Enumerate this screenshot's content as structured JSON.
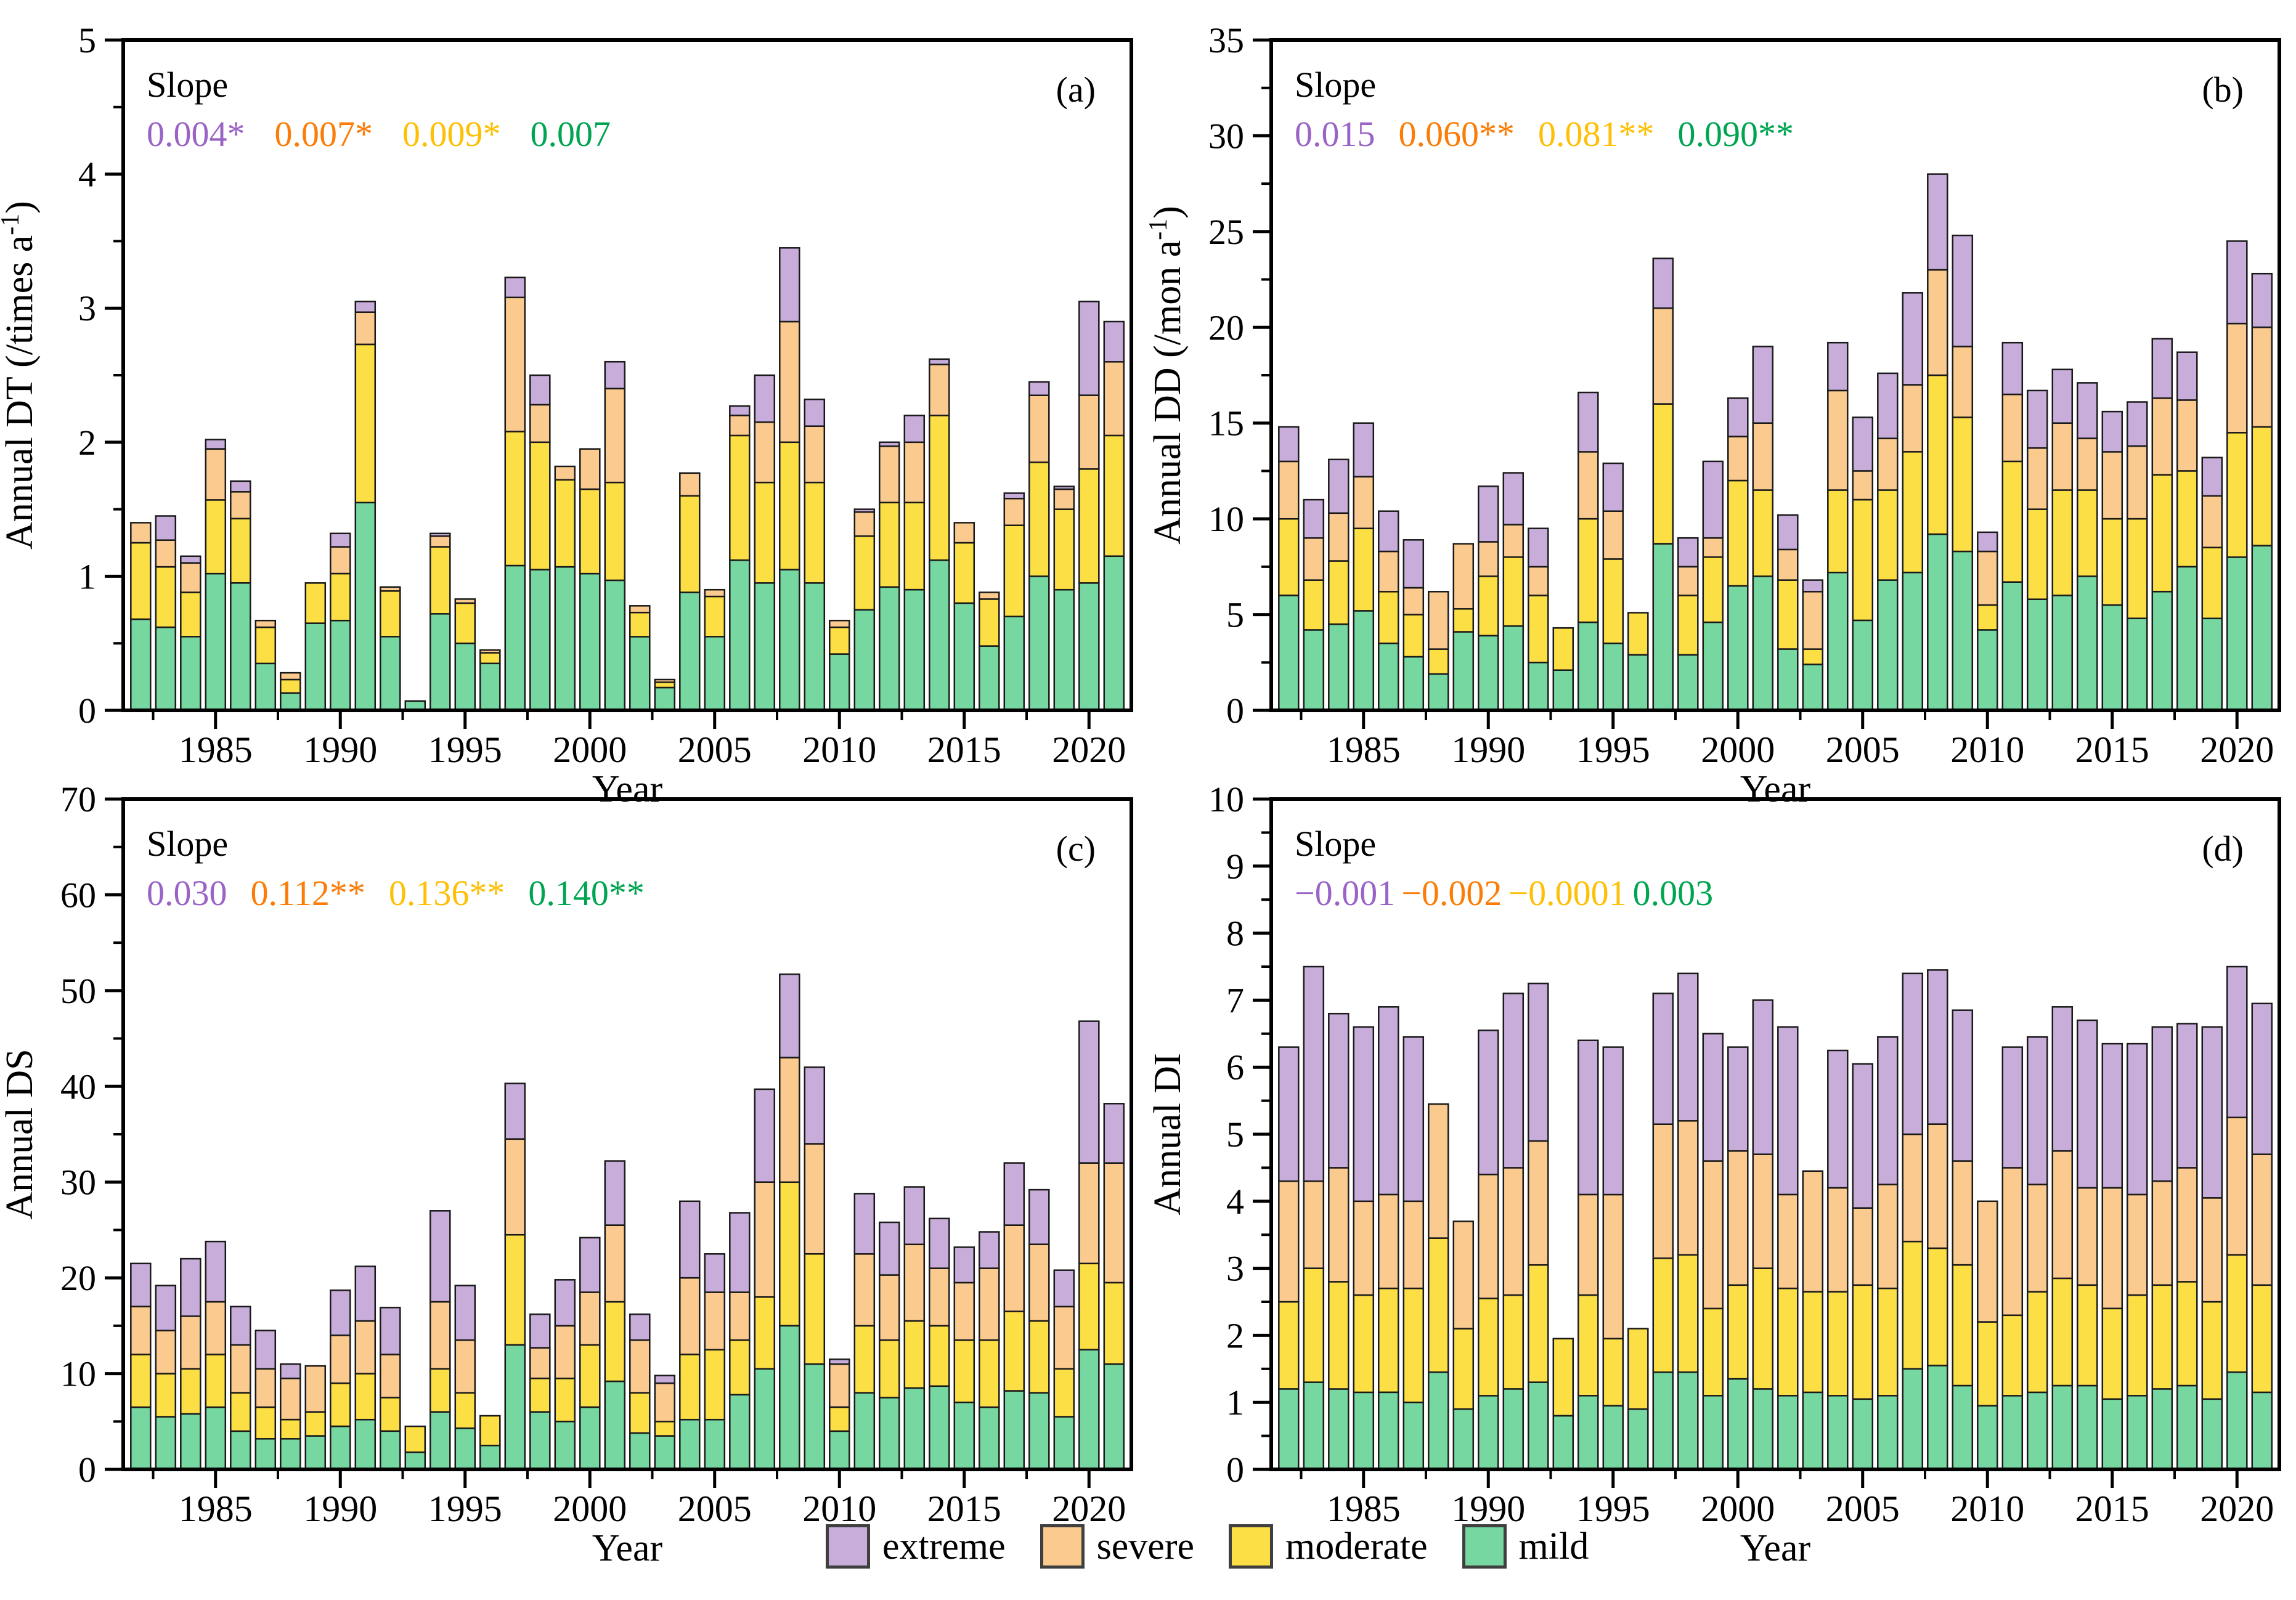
{
  "figure": {
    "background": "#FFFFFF"
  },
  "palette": {
    "bar_stroke": "#1A1A1A",
    "axis_color": "#000000",
    "mild": {
      "fill": "#76D7A1",
      "slope_text": "#00A551"
    },
    "moderate": {
      "fill": "#FCDE45",
      "slope_text": "#FEC006"
    },
    "severe": {
      "fill": "#FBCA8E",
      "slope_text": "#FB7D07"
    },
    "extreme": {
      "fill": "#C8ADDA",
      "slope_text": "#9A63C6"
    }
  },
  "legend": {
    "items": [
      {
        "name": "extreme",
        "label": "extreme"
      },
      {
        "name": "severe",
        "label": "severe"
      },
      {
        "name": "moderate",
        "label": "moderate"
      },
      {
        "name": "mild",
        "label": "mild"
      }
    ]
  },
  "chart_data": [
    {
      "type": "bar",
      "stacked": true,
      "panel_label": "(a)",
      "ylabel_prefix": "Annual DT (/times a",
      "ylabel_sup": "-1",
      "ylabel_suffix": ")",
      "xlabel": "Year",
      "ylim": [
        0,
        5
      ],
      "ytick_step": 1,
      "xticks": [
        1985,
        1990,
        1995,
        2000,
        2005,
        2010,
        2015,
        2020
      ],
      "slope_title": "Slope",
      "slopes": [
        {
          "series": "extreme",
          "text": "0.004*"
        },
        {
          "series": "severe",
          "text": "0.007*"
        },
        {
          "series": "moderate",
          "text": "0.009*"
        },
        {
          "series": "mild",
          "text": "0.007"
        }
      ],
      "years": [
        1982,
        1983,
        1984,
        1985,
        1986,
        1987,
        1988,
        1989,
        1990,
        1991,
        1992,
        1993,
        1994,
        1995,
        1996,
        1997,
        1998,
        1999,
        2000,
        2001,
        2002,
        2003,
        2004,
        2005,
        2006,
        2007,
        2008,
        2009,
        2010,
        2011,
        2012,
        2013,
        2014,
        2015,
        2016,
        2017,
        2018,
        2019,
        2020,
        2021
      ],
      "series": [
        {
          "name": "mild",
          "values": [
            0.68,
            0.62,
            0.55,
            1.02,
            0.95,
            0.35,
            0.13,
            0.65,
            0.67,
            1.55,
            0.55,
            0.07,
            0.72,
            0.5,
            0.35,
            1.08,
            1.05,
            1.07,
            1.02,
            0.97,
            0.55,
            0.17,
            0.88,
            0.55,
            1.12,
            0.95,
            1.05,
            0.95,
            0.42,
            0.75,
            0.92,
            0.9,
            1.12,
            0.8,
            0.48,
            0.7,
            1.0,
            0.9,
            0.95,
            1.15
          ]
        },
        {
          "name": "moderate",
          "values": [
            0.57,
            0.45,
            0.33,
            0.55,
            0.48,
            0.27,
            0.1,
            0.3,
            0.35,
            1.18,
            0.34,
            0.0,
            0.5,
            0.3,
            0.08,
            1.0,
            0.95,
            0.65,
            0.63,
            0.73,
            0.18,
            0.04,
            0.72,
            0.3,
            0.93,
            0.75,
            0.95,
            0.75,
            0.2,
            0.55,
            0.63,
            0.65,
            1.08,
            0.45,
            0.35,
            0.68,
            0.85,
            0.6,
            0.85,
            0.9
          ]
        },
        {
          "name": "severe",
          "values": [
            0.15,
            0.2,
            0.22,
            0.38,
            0.2,
            0.05,
            0.05,
            0.0,
            0.2,
            0.24,
            0.03,
            0.0,
            0.08,
            0.03,
            0.02,
            1.0,
            0.28,
            0.1,
            0.3,
            0.7,
            0.05,
            0.02,
            0.17,
            0.05,
            0.15,
            0.45,
            0.9,
            0.42,
            0.05,
            0.18,
            0.42,
            0.45,
            0.38,
            0.15,
            0.05,
            0.2,
            0.5,
            0.15,
            0.55,
            0.55
          ]
        },
        {
          "name": "extreme",
          "values": [
            0.0,
            0.18,
            0.05,
            0.07,
            0.08,
            0.0,
            0.0,
            0.0,
            0.1,
            0.08,
            0.0,
            0.0,
            0.02,
            0.0,
            0.0,
            0.15,
            0.22,
            0.0,
            0.0,
            0.2,
            0.0,
            0.0,
            0.0,
            0.0,
            0.07,
            0.35,
            0.55,
            0.2,
            0.0,
            0.02,
            0.03,
            0.2,
            0.04,
            0.0,
            0.0,
            0.04,
            0.1,
            0.02,
            0.7,
            0.3
          ]
        }
      ]
    },
    {
      "type": "bar",
      "stacked": true,
      "panel_label": "(b)",
      "ylabel_prefix": "Annual DD (/mon a",
      "ylabel_sup": "-1",
      "ylabel_suffix": ")",
      "xlabel": "Year",
      "ylim": [
        0,
        35
      ],
      "ytick_step": 5,
      "xticks": [
        1985,
        1990,
        1995,
        2000,
        2005,
        2010,
        2015,
        2020
      ],
      "slope_title": "Slope",
      "slopes": [
        {
          "series": "extreme",
          "text": "0.015"
        },
        {
          "series": "severe",
          "text": "0.060**"
        },
        {
          "series": "moderate",
          "text": "0.081**"
        },
        {
          "series": "mild",
          "text": "0.090**"
        }
      ],
      "years": [
        1982,
        1983,
        1984,
        1985,
        1986,
        1987,
        1988,
        1989,
        1990,
        1991,
        1992,
        1993,
        1994,
        1995,
        1996,
        1997,
        1998,
        1999,
        2000,
        2001,
        2002,
        2003,
        2004,
        2005,
        2006,
        2007,
        2008,
        2009,
        2010,
        2011,
        2012,
        2013,
        2014,
        2015,
        2016,
        2017,
        2018,
        2019,
        2020,
        2021
      ],
      "series": [
        {
          "name": "mild",
          "values": [
            6.0,
            4.2,
            4.5,
            5.2,
            3.5,
            2.8,
            1.9,
            4.1,
            3.9,
            4.4,
            2.5,
            2.1,
            4.6,
            3.5,
            2.9,
            8.7,
            2.9,
            4.6,
            6.5,
            7.0,
            3.2,
            2.4,
            7.2,
            4.7,
            6.8,
            7.2,
            9.2,
            8.3,
            4.2,
            6.7,
            5.8,
            6.0,
            7.0,
            5.5,
            4.8,
            6.2,
            7.5,
            4.8,
            8.0,
            8.6
          ]
        },
        {
          "name": "moderate",
          "values": [
            4.0,
            2.6,
            3.3,
            4.3,
            2.7,
            2.2,
            1.3,
            1.2,
            3.1,
            3.6,
            3.5,
            2.2,
            5.4,
            4.4,
            2.2,
            7.3,
            3.1,
            3.4,
            5.5,
            4.5,
            3.6,
            0.8,
            4.3,
            6.3,
            4.7,
            6.3,
            8.3,
            7.0,
            1.3,
            6.3,
            4.7,
            5.5,
            4.5,
            4.5,
            5.2,
            6.1,
            5.0,
            3.7,
            6.5,
            6.2
          ]
        },
        {
          "name": "severe",
          "values": [
            3.0,
            2.2,
            2.5,
            2.7,
            2.1,
            1.4,
            3.0,
            3.4,
            1.8,
            1.7,
            1.5,
            0.0,
            3.5,
            2.5,
            0.0,
            5.0,
            1.5,
            1.0,
            2.3,
            3.5,
            1.6,
            3.0,
            5.2,
            1.5,
            2.7,
            3.5,
            5.5,
            3.7,
            2.8,
            3.5,
            3.2,
            3.5,
            2.7,
            3.5,
            3.8,
            4.0,
            3.7,
            2.7,
            5.7,
            5.2
          ]
        },
        {
          "name": "extreme",
          "values": [
            1.8,
            2.0,
            2.8,
            2.8,
            2.1,
            2.5,
            0.0,
            0.0,
            2.9,
            2.7,
            2.0,
            0.0,
            3.1,
            2.5,
            0.0,
            2.6,
            1.5,
            4.0,
            2.0,
            4.0,
            1.8,
            0.6,
            2.5,
            2.8,
            3.4,
            4.8,
            5.0,
            5.8,
            1.0,
            2.7,
            3.0,
            2.8,
            2.9,
            2.1,
            2.3,
            3.1,
            2.5,
            2.0,
            4.3,
            2.8
          ]
        }
      ]
    },
    {
      "type": "bar",
      "stacked": true,
      "panel_label": "(c)",
      "ylabel_prefix": "Annual DS",
      "ylabel_sup": "",
      "ylabel_suffix": "",
      "xlabel": "Year",
      "ylim": [
        0,
        70
      ],
      "ytick_step": 10,
      "xticks": [
        1985,
        1990,
        1995,
        2000,
        2005,
        2010,
        2015,
        2020
      ],
      "slope_title": "Slope",
      "slopes": [
        {
          "series": "extreme",
          "text": "0.030"
        },
        {
          "series": "severe",
          "text": "0.112**"
        },
        {
          "series": "moderate",
          "text": "0.136**"
        },
        {
          "series": "mild",
          "text": "0.140**"
        }
      ],
      "years": [
        1982,
        1983,
        1984,
        1985,
        1986,
        1987,
        1988,
        1989,
        1990,
        1991,
        1992,
        1993,
        1994,
        1995,
        1996,
        1997,
        1998,
        1999,
        2000,
        2001,
        2002,
        2003,
        2004,
        2005,
        2006,
        2007,
        2008,
        2009,
        2010,
        2011,
        2012,
        2013,
        2014,
        2015,
        2016,
        2017,
        2018,
        2019,
        2020,
        2021
      ],
      "series": [
        {
          "name": "mild",
          "values": [
            6.5,
            5.5,
            5.8,
            6.5,
            4.0,
            3.2,
            3.2,
            3.5,
            4.5,
            5.2,
            4.0,
            1.8,
            6.0,
            4.3,
            2.5,
            13.0,
            6.0,
            5.0,
            6.5,
            9.2,
            3.8,
            3.5,
            5.2,
            5.2,
            7.8,
            10.5,
            15.0,
            11.0,
            4.0,
            8.0,
            7.5,
            8.5,
            8.7,
            7.0,
            6.5,
            8.2,
            8.0,
            5.5,
            12.5,
            11.0
          ]
        },
        {
          "name": "moderate",
          "values": [
            5.5,
            4.5,
            4.7,
            5.5,
            4.0,
            3.3,
            2.0,
            2.5,
            4.5,
            4.8,
            3.5,
            2.7,
            4.5,
            3.7,
            3.1,
            11.5,
            3.5,
            4.5,
            6.5,
            8.3,
            4.2,
            1.5,
            6.8,
            7.3,
            5.7,
            7.5,
            15.0,
            11.5,
            2.5,
            7.0,
            6.0,
            7.0,
            6.3,
            6.5,
            7.0,
            8.3,
            7.5,
            5.0,
            9.0,
            8.5
          ]
        },
        {
          "name": "severe",
          "values": [
            5.0,
            4.5,
            5.5,
            5.5,
            5.0,
            4.0,
            4.3,
            4.8,
            5.0,
            5.5,
            4.5,
            0.0,
            7.0,
            5.5,
            0.0,
            10.0,
            3.2,
            5.5,
            5.5,
            8.0,
            5.5,
            4.0,
            8.0,
            6.0,
            5.0,
            12.0,
            13.0,
            11.5,
            4.5,
            7.5,
            6.8,
            8.0,
            6.0,
            6.0,
            7.5,
            9.0,
            8.0,
            6.5,
            10.5,
            12.5
          ]
        },
        {
          "name": "extreme",
          "values": [
            4.5,
            4.7,
            6.0,
            6.3,
            4.0,
            4.0,
            1.5,
            0.0,
            4.7,
            5.7,
            4.9,
            0.0,
            9.5,
            5.7,
            0.0,
            5.8,
            3.5,
            4.8,
            5.7,
            6.7,
            2.7,
            0.8,
            8.0,
            4.0,
            8.3,
            9.7,
            8.7,
            8.0,
            0.5,
            6.3,
            5.5,
            6.0,
            5.2,
            3.7,
            3.8,
            6.5,
            5.7,
            3.8,
            14.8,
            6.2
          ]
        }
      ]
    },
    {
      "type": "bar",
      "stacked": true,
      "panel_label": "(d)",
      "ylabel_prefix": "Annual DI",
      "ylabel_sup": "",
      "ylabel_suffix": "",
      "xlabel": "Year",
      "ylim": [
        0,
        10
      ],
      "ytick_step": 1,
      "xticks": [
        1985,
        1990,
        1995,
        2000,
        2005,
        2010,
        2015,
        2020
      ],
      "slope_title": "Slope",
      "slopes": [
        {
          "series": "extreme",
          "text": "−0.001"
        },
        {
          "series": "severe",
          "text": "−0.002"
        },
        {
          "series": "moderate",
          "text": "−0.0001"
        },
        {
          "series": "mild",
          "text": "0.003"
        }
      ],
      "years": [
        1982,
        1983,
        1984,
        1985,
        1986,
        1987,
        1988,
        1989,
        1990,
        1991,
        1992,
        1993,
        1994,
        1995,
        1996,
        1997,
        1998,
        1999,
        2000,
        2001,
        2002,
        2003,
        2004,
        2005,
        2006,
        2007,
        2008,
        2009,
        2010,
        2011,
        2012,
        2013,
        2014,
        2015,
        2016,
        2017,
        2018,
        2019,
        2020,
        2021
      ],
      "series": [
        {
          "name": "mild",
          "values": [
            1.2,
            1.3,
            1.2,
            1.15,
            1.15,
            1.0,
            1.45,
            0.9,
            1.1,
            1.2,
            1.3,
            0.8,
            1.1,
            0.95,
            0.9,
            1.45,
            1.45,
            1.1,
            1.35,
            1.2,
            1.1,
            1.15,
            1.1,
            1.05,
            1.1,
            1.5,
            1.55,
            1.25,
            0.95,
            1.1,
            1.15,
            1.25,
            1.25,
            1.05,
            1.1,
            1.2,
            1.25,
            1.05,
            1.45,
            1.15
          ]
        },
        {
          "name": "moderate",
          "values": [
            1.3,
            1.7,
            1.6,
            1.45,
            1.55,
            1.7,
            2.0,
            1.2,
            1.45,
            1.4,
            1.75,
            1.15,
            1.5,
            1.0,
            1.2,
            1.7,
            1.75,
            1.3,
            1.4,
            1.8,
            1.6,
            1.5,
            1.55,
            1.7,
            1.6,
            1.9,
            1.75,
            1.8,
            1.25,
            1.2,
            1.5,
            1.6,
            1.5,
            1.35,
            1.5,
            1.55,
            1.55,
            1.45,
            1.75,
            1.6
          ]
        },
        {
          "name": "severe",
          "values": [
            1.8,
            1.3,
            1.7,
            1.4,
            1.4,
            1.3,
            2.0,
            1.6,
            1.85,
            1.9,
            1.85,
            0.0,
            1.5,
            2.15,
            0.0,
            2.0,
            2.0,
            2.2,
            2.0,
            1.7,
            1.4,
            1.8,
            1.55,
            1.15,
            1.55,
            1.6,
            1.85,
            1.55,
            1.8,
            2.2,
            1.6,
            1.9,
            1.45,
            1.8,
            1.5,
            1.55,
            1.7,
            1.55,
            2.05,
            1.95
          ]
        },
        {
          "name": "extreme",
          "values": [
            2.0,
            3.2,
            2.3,
            2.6,
            2.8,
            2.45,
            0.0,
            0.0,
            2.15,
            2.6,
            2.35,
            0.0,
            2.3,
            2.2,
            0.0,
            1.95,
            2.2,
            1.9,
            1.55,
            2.3,
            2.5,
            0.0,
            2.05,
            2.15,
            2.2,
            2.4,
            2.3,
            2.25,
            0.0,
            1.8,
            2.2,
            2.15,
            2.5,
            2.15,
            2.25,
            2.3,
            2.15,
            2.55,
            2.25,
            2.25
          ]
        }
      ]
    }
  ]
}
